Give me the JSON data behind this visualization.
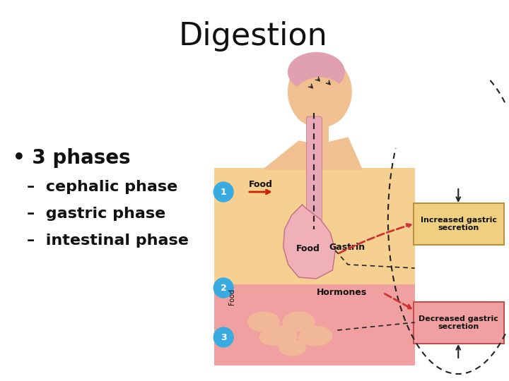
{
  "title": "Digestion",
  "title_fontsize": 32,
  "title_fontweight": "normal",
  "title_color": "#111111",
  "background_color": "#ffffff",
  "bullet_main": "3 phases",
  "bullet_main_fontsize": 20,
  "bullet_main_fontweight": "bold",
  "bullets": [
    "cephalic phase",
    "gastric phase",
    "intestinal phase"
  ],
  "bullet_fontsize": 16,
  "bullet_fontweight": "bold",
  "bullet_color": "#111111",
  "panel1_color": "#f5d090",
  "panel2_color": "#f0a0a0",
  "circle_color": "#3aabe0",
  "circle_text_color": "#ffffff",
  "label_food1": "Food",
  "label_food2": "Food",
  "label_gastrin": "Gastrin",
  "label_hormones": "Hormones",
  "label_inc": "Increased gastric\nsecretion",
  "label_dec": "Decreased gastric\nsecretion",
  "box1_face": "#f0d080",
  "box1_edge": "#b89040",
  "box2_face": "#f0a0a0",
  "box2_edge": "#c05050",
  "skin_color": "#f0c090",
  "brain_color": "#e0a0b0",
  "esoph_color": "#e8a8b8",
  "stomach_fill": "#f0b0b8",
  "stomach_edge": "#c07080",
  "intestine_color": "#f0b898",
  "intestine_edge": "#c08060",
  "arrow_red": "#cc2200",
  "dashed_color": "#222222",
  "dashed_red": "#cc3333"
}
